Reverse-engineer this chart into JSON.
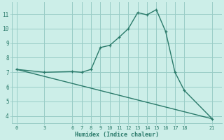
{
  "xlabel": "Humidex (Indice chaleur)",
  "bg_color": "#cceee8",
  "grid_color": "#99ccc6",
  "line_color": "#2a7a6a",
  "curve1_x": [
    0,
    3,
    6,
    7,
    8,
    9,
    10,
    11,
    12,
    13,
    14,
    15,
    16,
    17,
    18,
    21
  ],
  "curve1_y": [
    7.2,
    7.0,
    7.05,
    7.0,
    7.2,
    8.7,
    8.85,
    9.4,
    10.0,
    11.1,
    10.95,
    11.3,
    9.8,
    7.0,
    5.75,
    3.8
  ],
  "curve2_x": [
    0,
    21
  ],
  "curve2_y": [
    7.2,
    3.8
  ],
  "xticks": [
    0,
    3,
    6,
    7,
    8,
    9,
    10,
    11,
    12,
    13,
    14,
    15,
    16,
    17,
    18,
    21
  ],
  "yticks": [
    4,
    5,
    6,
    7,
    8,
    9,
    10,
    11
  ],
  "xlim": [
    -0.5,
    22
  ],
  "ylim": [
    3.5,
    11.8
  ],
  "marker": "+"
}
